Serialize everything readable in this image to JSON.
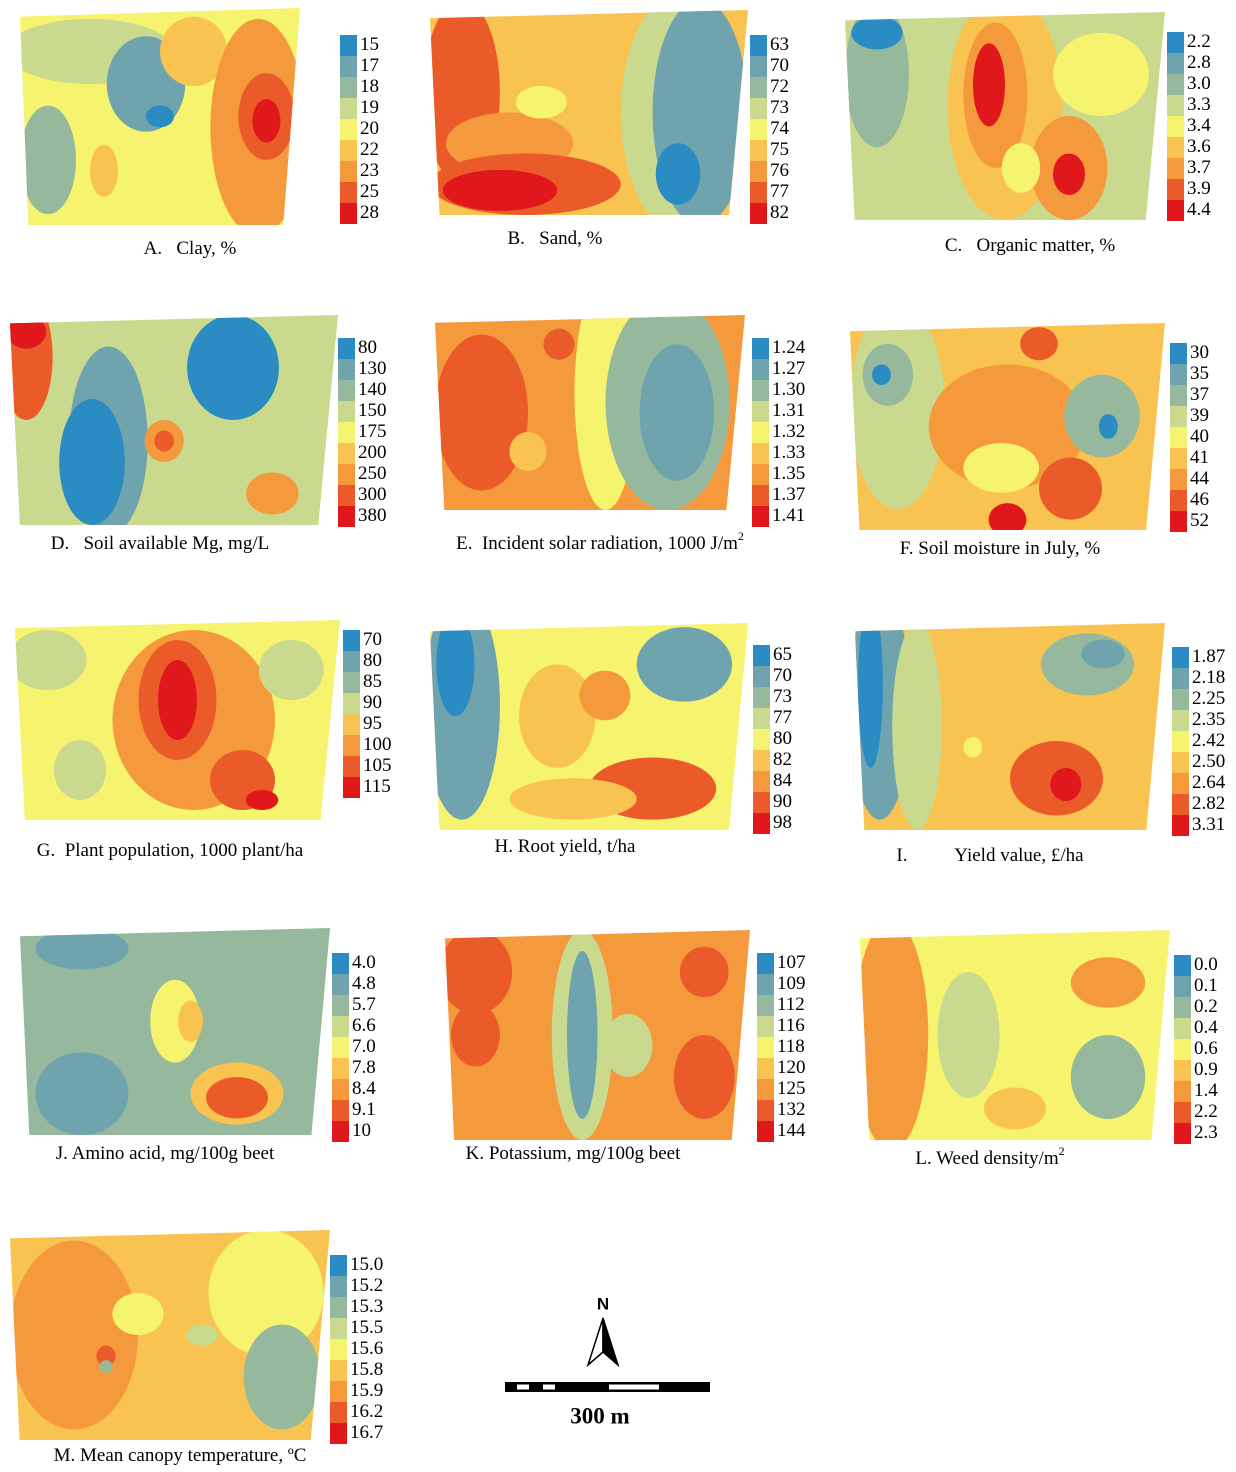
{
  "palette": [
    "#2b8cc4",
    "#6fa3ae",
    "#96b99d",
    "#c9d98e",
    "#f6f36e",
    "#f8c350",
    "#f49a3c",
    "#ea5b29",
    "#e0171b"
  ],
  "panels": [
    {
      "caption": "A.   Clay, %",
      "legend": [
        "15",
        "17",
        "18",
        "19",
        "20",
        "22",
        "23",
        "25",
        "28"
      ]
    },
    {
      "caption": "B.   Sand, %",
      "legend": [
        "63",
        "70",
        "72",
        "73",
        "74",
        "75",
        "76",
        "77",
        "82"
      ]
    },
    {
      "caption": "C.   Organic matter, %",
      "legend": [
        "2.2",
        "2.8",
        "3.0",
        "3.3",
        "3.4",
        "3.6",
        "3.7",
        "3.9",
        "4.4"
      ]
    },
    {
      "caption": "D.   Soil available Mg, mg/L",
      "legend": [
        "80",
        "130",
        "140",
        "150",
        "175",
        "200",
        "250",
        "300",
        "380"
      ]
    },
    {
      "caption": "E.  Incident solar radiation, 1000 J/m",
      "caption_sup": "2",
      "legend": [
        "1.24",
        "1.27",
        "1.30",
        "1.31",
        "1.32",
        "1.33",
        "1.35",
        "1.37",
        "1.41"
      ]
    },
    {
      "caption": "F. Soil moisture in July, %",
      "legend": [
        "30",
        "35",
        "37",
        "39",
        "40",
        "41",
        "44",
        "46",
        "52"
      ]
    },
    {
      "caption": "G.  Plant population, 1000 plant/ha",
      "legend": [
        "70",
        "80",
        "85",
        "90",
        "95",
        "100",
        "105",
        "115"
      ]
    },
    {
      "caption": "H. Root yield, t/ha",
      "legend": [
        "65",
        "70",
        "73",
        "77",
        "80",
        "82",
        "84",
        "90",
        "98"
      ]
    },
    {
      "caption": "I.          Yield value, £/ha",
      "legend": [
        "1.87",
        "2.18",
        "2.25",
        "2.35",
        "2.42",
        "2.50",
        "2.64",
        "2.82",
        "3.31"
      ]
    },
    {
      "caption": "J. Amino acid, mg/100g beet",
      "legend": [
        "4.0",
        "4.8",
        "5.7",
        "6.6",
        "7.0",
        "7.8",
        "8.4",
        "9.1",
        "10"
      ]
    },
    {
      "caption": "K. Potassium, mg/100g beet",
      "legend": [
        "107",
        "109",
        "112",
        "116",
        "118",
        "120",
        "125",
        "132",
        "144"
      ]
    },
    {
      "caption": "L. Weed density/m",
      "caption_sup": "2",
      "legend": [
        "0.0",
        "0.1",
        "0.2",
        "0.4",
        "0.6",
        "0.9",
        "1.4",
        "2.2",
        "2.3"
      ]
    },
    {
      "caption": "M. Mean canopy temperature, ºC",
      "legend": [
        "15.0",
        "15.2",
        "15.3",
        "15.5",
        "15.6",
        "15.8",
        "15.9",
        "16.2",
        "16.7"
      ]
    }
  ],
  "north_label": "N",
  "scale_label": "300 m"
}
